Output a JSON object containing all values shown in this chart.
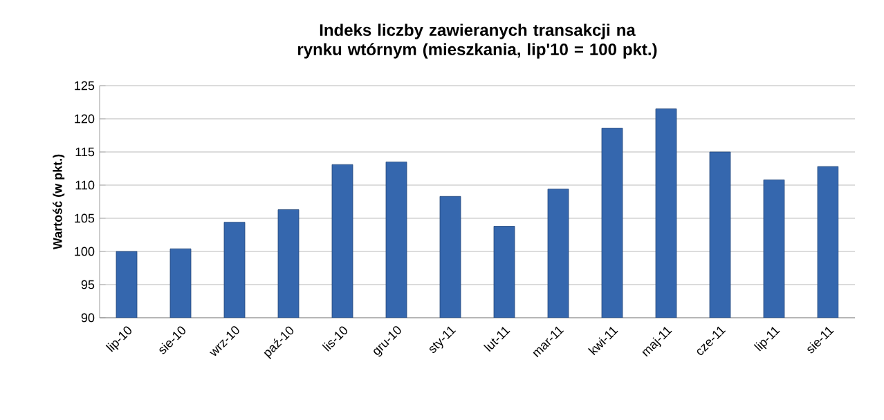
{
  "chart_data": {
    "type": "bar",
    "title": "Indeks liczby zawieranych transakcji na rynku wtórnym (mieszkania, lip'10 = 100 pkt.)",
    "ylabel": "Wartość (w pkt.)",
    "categories": [
      "lip-10",
      "sie-10",
      "wrz-10",
      "paź-10",
      "lis-10",
      "gru-10",
      "sty-11",
      "lut-11",
      "mar-11",
      "kwi-11",
      "maj-11",
      "cze-11",
      "lip-11",
      "sie-11"
    ],
    "values": [
      100.0,
      100.4,
      104.4,
      106.3,
      113.1,
      113.5,
      108.3,
      103.8,
      109.4,
      118.6,
      121.5,
      115.0,
      110.8,
      112.8
    ],
    "color": "#3567ae",
    "ylim": [
      90,
      125
    ],
    "yticks": [
      90,
      95,
      100,
      105,
      110,
      115,
      120,
      125
    ],
    "grid": "y"
  }
}
